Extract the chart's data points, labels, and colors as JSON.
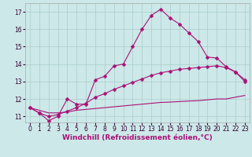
{
  "series": [
    {
      "x": [
        0,
        1,
        2,
        3,
        4,
        5,
        6,
        7,
        8,
        9,
        10,
        11,
        12,
        13,
        14,
        15,
        16,
        17,
        18,
        19,
        20,
        21,
        22,
        23
      ],
      "y": [
        11.5,
        11.2,
        10.75,
        11.0,
        12.0,
        11.7,
        11.7,
        13.1,
        13.3,
        13.9,
        14.0,
        15.0,
        16.0,
        16.8,
        17.15,
        16.65,
        16.3,
        15.8,
        15.3,
        14.4,
        14.35,
        13.85,
        13.55,
        13.0
      ],
      "color": "#aa1177",
      "marker": "D",
      "markersize": 2.5,
      "linestyle": "-"
    },
    {
      "x": [
        0,
        1,
        2,
        3,
        4,
        5,
        6,
        7,
        8,
        9,
        10,
        11,
        12,
        13,
        14,
        15,
        16,
        17,
        18,
        19,
        20,
        21,
        22,
        23
      ],
      "y": [
        11.5,
        11.2,
        11.0,
        11.1,
        11.3,
        11.5,
        11.75,
        12.1,
        12.3,
        12.55,
        12.75,
        12.95,
        13.15,
        13.35,
        13.5,
        13.6,
        13.7,
        13.75,
        13.8,
        13.85,
        13.9,
        13.8,
        13.55,
        13.1
      ],
      "color": "#aa1177",
      "marker": "D",
      "markersize": 2.5,
      "linestyle": "-"
    },
    {
      "x": [
        0,
        1,
        2,
        3,
        4,
        5,
        6,
        7,
        8,
        9,
        10,
        11,
        12,
        13,
        14,
        15,
        16,
        17,
        18,
        19,
        20,
        21,
        22,
        23
      ],
      "y": [
        11.5,
        11.35,
        11.2,
        11.2,
        11.25,
        11.35,
        11.4,
        11.45,
        11.5,
        11.55,
        11.6,
        11.65,
        11.7,
        11.75,
        11.8,
        11.82,
        11.85,
        11.88,
        11.9,
        11.95,
        12.0,
        12.0,
        12.1,
        12.2
      ],
      "color": "#aa1177",
      "marker": null,
      "markersize": 0,
      "linestyle": "-"
    }
  ],
  "xlim": [
    -0.5,
    23.5
  ],
  "ylim": [
    10.65,
    17.5
  ],
  "yticks": [
    11,
    12,
    13,
    14,
    15,
    16,
    17
  ],
  "xtick_labels": [
    "0",
    "1",
    "2",
    "3",
    "4",
    "5",
    "6",
    "7",
    "8",
    "9",
    "10",
    "11",
    "12",
    "13",
    "14",
    "15",
    "16",
    "17",
    "18",
    "19",
    "20",
    "21",
    "22",
    "23"
  ],
  "xtick_positions": [
    0,
    1,
    2,
    3,
    4,
    5,
    6,
    7,
    8,
    9,
    10,
    11,
    12,
    13,
    14,
    15,
    16,
    17,
    18,
    19,
    20,
    21,
    22,
    23
  ],
  "xlabel": "Windchill (Refroidissement éolien,°C)",
  "background_color": "#cce8e8",
  "grid_color": "#aacccc",
  "line_color": "#aa1177",
  "tick_fontsize": 5.5,
  "xlabel_fontsize": 6.5
}
